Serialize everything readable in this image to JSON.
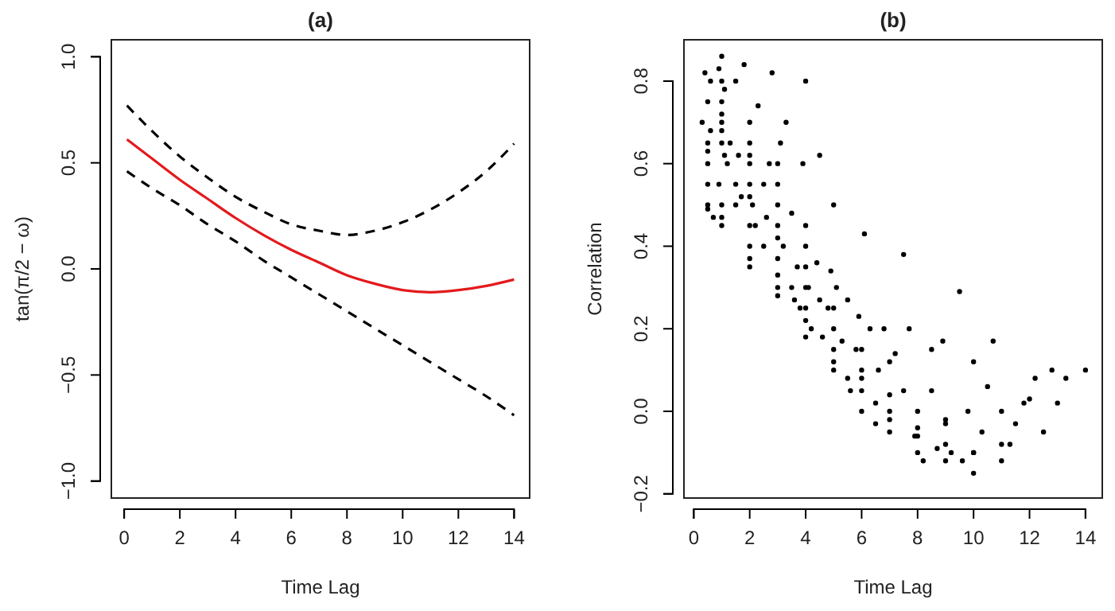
{
  "chart_data": [
    {
      "type": "line",
      "title": "(a)",
      "xlabel": "Time Lag",
      "ylabel": "tan(π/2 − ω)",
      "x": [
        0.1,
        1,
        2,
        3,
        4,
        5,
        6,
        7,
        8,
        9,
        10,
        11,
        12,
        13,
        14
      ],
      "xlim": [
        -0.46,
        14.56
      ],
      "ylim": [
        -1.08,
        1.08
      ],
      "xticks": [
        0,
        2,
        4,
        6,
        8,
        10,
        12,
        14
      ],
      "yticks": [
        {
          "value": -1,
          "label": "−1.0"
        },
        -0.5,
        {
          "value": 0,
          "label": "0.0"
        },
        0.5,
        {
          "value": 1,
          "label": "1.0"
        }
      ],
      "grid": false,
      "series": [
        {
          "color": "#000000",
          "line_style": "dashed",
          "values": [
            0.77,
            0.65,
            0.53,
            0.43,
            0.34,
            0.27,
            0.21,
            0.18,
            0.16,
            0.18,
            0.22,
            0.28,
            0.36,
            0.46,
            0.59
          ]
        },
        {
          "color": "#e31a1c",
          "line_style": "solid",
          "values": [
            0.61,
            0.52,
            0.42,
            0.33,
            0.24,
            0.16,
            0.09,
            0.03,
            -0.03,
            -0.07,
            -0.1,
            -0.11,
            -0.1,
            -0.08,
            -0.05
          ]
        },
        {
          "color": "#000000",
          "line_style": "dashed",
          "values": [
            0.46,
            0.38,
            0.3,
            0.21,
            0.13,
            0.04,
            -0.04,
            -0.12,
            -0.2,
            -0.28,
            -0.36,
            -0.44,
            -0.52,
            -0.6,
            -0.69
          ]
        }
      ]
    },
    {
      "type": "scatter",
      "title": "(b)",
      "xlabel": "Time Lag",
      "ylabel": "Correlation",
      "xlim": [
        -0.35,
        14.6
      ],
      "ylim": [
        -0.21,
        0.9
      ],
      "xticks": [
        0,
        2,
        4,
        6,
        8,
        10,
        12,
        14
      ],
      "yticks": [
        -0.2,
        {
          "value": 0,
          "label": "0.0"
        },
        0.2,
        0.4,
        0.6,
        0.8
      ],
      "grid": false,
      "marker": "circle",
      "series": [
        {
          "color": "#000000",
          "x": [
            0.5,
            0.5,
            0.5,
            0.5,
            0.5,
            0.5,
            0.5,
            0.6,
            0.6,
            0.7,
            0.4,
            0.3,
            1,
            1,
            1,
            1,
            1,
            1,
            1,
            1,
            1,
            1,
            1.1,
            1.1,
            0.9,
            0.9,
            1.2,
            1.3,
            1.5,
            1.5,
            1.5,
            1.6,
            1.7,
            1.8,
            2,
            2,
            2,
            2,
            2,
            2,
            2,
            2,
            2,
            2,
            2.1,
            2.2,
            2.3,
            2.5,
            2.5,
            2.6,
            2.7,
            2.8,
            3,
            3,
            3,
            3,
            3,
            3,
            3,
            3,
            3,
            3.1,
            3.2,
            3.3,
            3.5,
            3.5,
            3.6,
            3.7,
            3.8,
            3.9,
            4,
            4,
            4,
            4,
            4,
            4,
            4,
            4,
            4.1,
            4.2,
            4.4,
            4.5,
            4.5,
            4.6,
            4.8,
            4.9,
            5,
            5,
            5,
            5,
            5,
            5,
            5.1,
            5.3,
            5.5,
            5.5,
            5.6,
            5.8,
            5.9,
            6,
            6,
            6,
            6,
            6,
            6.1,
            6.3,
            6.5,
            6.5,
            6.6,
            6.8,
            7,
            7,
            7,
            7,
            7,
            7.2,
            7.5,
            7.5,
            7.7,
            7.9,
            8,
            8,
            8,
            8,
            8.2,
            8.5,
            8.5,
            8.7,
            8.9,
            9,
            9,
            9,
            9,
            9.2,
            9.5,
            9.6,
            9.8,
            10,
            10,
            10,
            10,
            10.3,
            10.5,
            10.7,
            11,
            11,
            11,
            11.3,
            11.5,
            11.8,
            12,
            12.2,
            12.5,
            12.8,
            13,
            13.3,
            14
          ],
          "values": [
            0.63,
            0.65,
            0.6,
            0.5,
            0.49,
            0.55,
            0.75,
            0.68,
            0.8,
            0.47,
            0.82,
            0.7,
            0.72,
            0.68,
            0.65,
            0.7,
            0.75,
            0.8,
            0.86,
            0.47,
            0.45,
            0.5,
            0.62,
            0.78,
            0.83,
            0.55,
            0.6,
            0.65,
            0.55,
            0.5,
            0.8,
            0.62,
            0.52,
            0.84,
            0.6,
            0.55,
            0.65,
            0.62,
            0.52,
            0.4,
            0.37,
            0.35,
            0.7,
            0.45,
            0.5,
            0.45,
            0.74,
            0.55,
            0.4,
            0.47,
            0.6,
            0.82,
            0.5,
            0.42,
            0.37,
            0.33,
            0.55,
            0.45,
            0.6,
            0.3,
            0.28,
            0.65,
            0.4,
            0.7,
            0.3,
            0.48,
            0.27,
            0.35,
            0.25,
            0.6,
            0.45,
            0.35,
            0.3,
            0.25,
            0.22,
            0.18,
            0.4,
            0.8,
            0.3,
            0.2,
            0.36,
            0.27,
            0.62,
            0.18,
            0.25,
            0.34,
            0.2,
            0.15,
            0.12,
            0.25,
            0.5,
            0.1,
            0.3,
            0.17,
            0.08,
            0.27,
            0.05,
            0.15,
            0.23,
            0.05,
            0.08,
            0.1,
            0.0,
            0.15,
            0.43,
            0.2,
            -0.03,
            0.02,
            0.1,
            0.2,
            0.12,
            0.04,
            0.0,
            -0.02,
            -0.05,
            0.14,
            0.38,
            0.05,
            0.2,
            -0.06,
            -0.1,
            0.0,
            -0.04,
            -0.06,
            -0.12,
            0.15,
            0.05,
            -0.09,
            0.17,
            -0.12,
            -0.02,
            -0.08,
            -0.03,
            -0.1,
            0.29,
            -0.12,
            0.0,
            -0.1,
            0.12,
            -0.15,
            -0.1,
            -0.05,
            0.06,
            0.17,
            -0.12,
            0.0,
            -0.08,
            -0.08,
            -0.03,
            0.02,
            0.03,
            0.08,
            -0.05,
            0.1,
            0.02,
            0.08,
            0.1
          ]
        }
      ]
    }
  ]
}
